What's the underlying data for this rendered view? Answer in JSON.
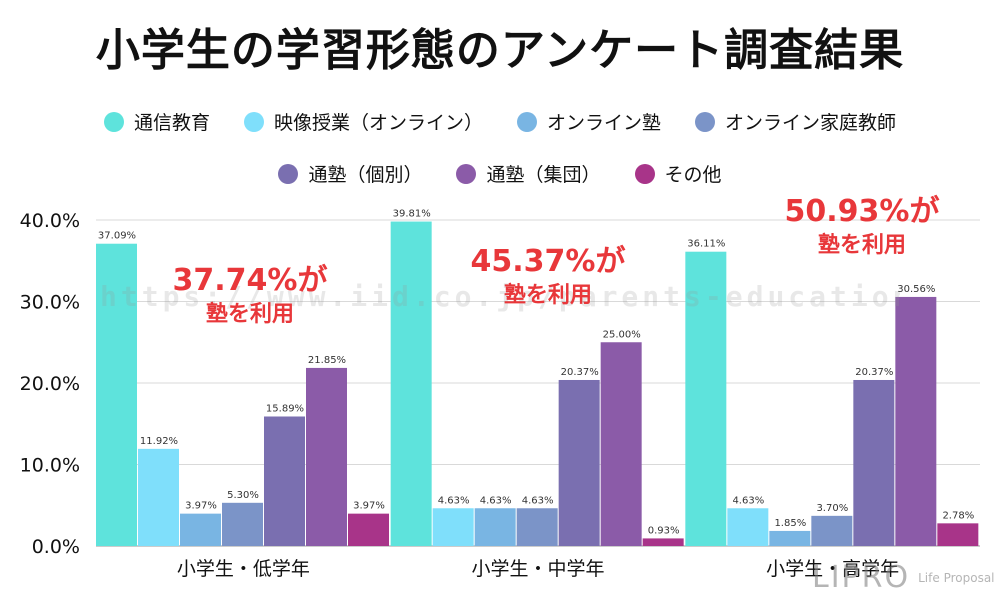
{
  "chart_data": {
    "type": "bar",
    "title": "小学生の学習形態のアンケート調査結果",
    "categories": [
      "小学生・低学年",
      "小学生・中学年",
      "小学生・高学年"
    ],
    "series": [
      {
        "name": "通信教育",
        "color": "#5ee3dc",
        "values": [
          37.09,
          39.81,
          36.11
        ],
        "labels": [
          "37.09%",
          "39.81%",
          "36.11%"
        ]
      },
      {
        "name": "映像授業（オンライン）",
        "color": "#7fdffb",
        "values": [
          11.92,
          4.63,
          4.63
        ],
        "labels": [
          "11.92%",
          "4.63%",
          "4.63%"
        ]
      },
      {
        "name": "オンライン塾",
        "color": "#79b5e3",
        "values": [
          3.97,
          4.63,
          1.85
        ],
        "labels": [
          "3.97%",
          "4.63%",
          "1.85%"
        ]
      },
      {
        "name": "オンライン家庭教師",
        "color": "#7b94c8",
        "values": [
          5.3,
          4.63,
          3.7
        ],
        "labels": [
          "5.30%",
          "4.63%",
          "3.70%"
        ]
      },
      {
        "name": "通塾（個別）",
        "color": "#7a6fb0",
        "values": [
          15.89,
          20.37,
          20.37
        ],
        "labels": [
          "15.89%",
          "20.37%",
          "20.37%"
        ]
      },
      {
        "name": "通塾（集団）",
        "color": "#8b5ba8",
        "values": [
          21.85,
          25.0,
          30.56
        ],
        "labels": [
          "21.85%",
          "25.00%",
          "30.56%"
        ]
      },
      {
        "name": "その他",
        "color": "#a83489",
        "values": [
          3.97,
          0.93,
          2.78
        ],
        "labels": [
          "3.97%",
          "0.93%",
          "2.78%"
        ]
      }
    ],
    "ylim": [
      0,
      40
    ],
    "yticks": [
      0,
      10,
      20,
      30,
      40
    ],
    "ytick_labels": [
      "0.0%",
      "10.0%",
      "20.0%",
      "30.0%",
      "40.0%"
    ],
    "grid": true,
    "legend_position": "top",
    "annotations": [
      {
        "percent": "37.74%が",
        "text": "塾を利用"
      },
      {
        "percent": "45.37%が",
        "text": "塾を利用"
      },
      {
        "percent": "50.93%が",
        "text": "塾を利用"
      }
    ],
    "annotation_color": "#e8373a"
  },
  "watermark": "https://www.iid.co.jp/parents-education/",
  "logo": {
    "mark": "LIPRO",
    "sub": "Life Proposal"
  }
}
